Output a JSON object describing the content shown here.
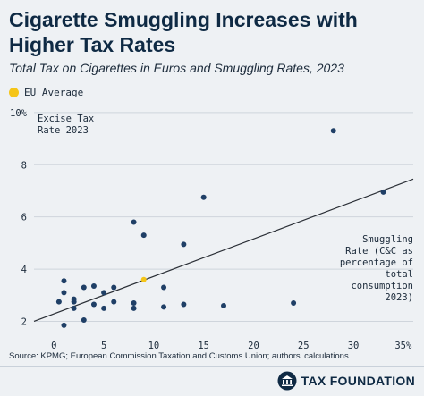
{
  "header": {
    "title": "Cigarette Smuggling Increases with Higher Tax Rates",
    "subtitle": "Total Tax on Cigarettes in Euros and Smuggling Rates, 2023"
  },
  "legend": {
    "label": "EU Average",
    "color": "#f5c518"
  },
  "footer": {
    "source": "Source: KPMG; European Commission Taxation and Customs Union; authors' calculations.",
    "brand": "TAX FOUNDATION",
    "brand_icon": "tax-foundation-logo-icon"
  },
  "colors": {
    "points": "#1f3f66",
    "trend": "#2a2f36",
    "grid": "#cfd5dc",
    "eu_average": "#f5c518"
  },
  "chart_data": {
    "type": "scatter",
    "title": "Cigarette Smuggling Increases with Higher Tax Rates",
    "subtitle": "Total Tax on Cigarettes in Euros and Smuggling Rates, 2023",
    "xlabel": "Smuggling Rate (C&C as percentage of total consumption 2023)",
    "ylabel": "Excise Tax Rate 2023",
    "xlabel_lines": [
      "Smuggling",
      "Rate (C&C as",
      "percentage of",
      "total",
      "consumption",
      "2023)"
    ],
    "ylabel_lines": [
      "Excise Tax",
      "Rate 2023"
    ],
    "xlim": [
      -2,
      36
    ],
    "ylim": [
      1.4,
      10.2
    ],
    "x_ticks": [
      0,
      5,
      10,
      15,
      20,
      25,
      30,
      35
    ],
    "x_tick_labels": [
      "0",
      "5",
      "10",
      "15",
      "20",
      "25",
      "30",
      "35%"
    ],
    "y_ticks": [
      2,
      4,
      6,
      8,
      10
    ],
    "y_tick_labels": [
      "2",
      "4",
      "6",
      "8",
      "10%"
    ],
    "grid": "horizontal",
    "legend_position": "top-left",
    "series": [
      {
        "name": "",
        "color": "#1f3f66",
        "points": [
          {
            "x": 1,
            "y": 1.85
          },
          {
            "x": 1,
            "y": 3.1
          },
          {
            "x": 1,
            "y": 3.55
          },
          {
            "x": 0.5,
            "y": 2.75
          },
          {
            "x": 2,
            "y": 2.5
          },
          {
            "x": 2,
            "y": 2.75
          },
          {
            "x": 2,
            "y": 2.85
          },
          {
            "x": 3,
            "y": 2.05
          },
          {
            "x": 3,
            "y": 3.3
          },
          {
            "x": 4,
            "y": 2.65
          },
          {
            "x": 4,
            "y": 3.35
          },
          {
            "x": 5,
            "y": 2.5
          },
          {
            "x": 5,
            "y": 3.1
          },
          {
            "x": 6,
            "y": 2.75
          },
          {
            "x": 6,
            "y": 3.3
          },
          {
            "x": 8,
            "y": 2.5
          },
          {
            "x": 8,
            "y": 2.7
          },
          {
            "x": 8,
            "y": 5.8
          },
          {
            "x": 9,
            "y": 5.3
          },
          {
            "x": 11,
            "y": 2.55
          },
          {
            "x": 11,
            "y": 3.3
          },
          {
            "x": 13,
            "y": 2.65
          },
          {
            "x": 13,
            "y": 4.95
          },
          {
            "x": 15,
            "y": 6.75
          },
          {
            "x": 17,
            "y": 2.6
          },
          {
            "x": 24,
            "y": 2.7
          },
          {
            "x": 28,
            "y": 9.3
          },
          {
            "x": 33,
            "y": 6.95
          }
        ]
      },
      {
        "name": "EU Average",
        "color": "#f5c518",
        "points": [
          {
            "x": 9,
            "y": 3.6
          }
        ]
      }
    ],
    "trendline": {
      "x": [
        -2,
        36
      ],
      "y": [
        2.0,
        7.45
      ]
    }
  }
}
